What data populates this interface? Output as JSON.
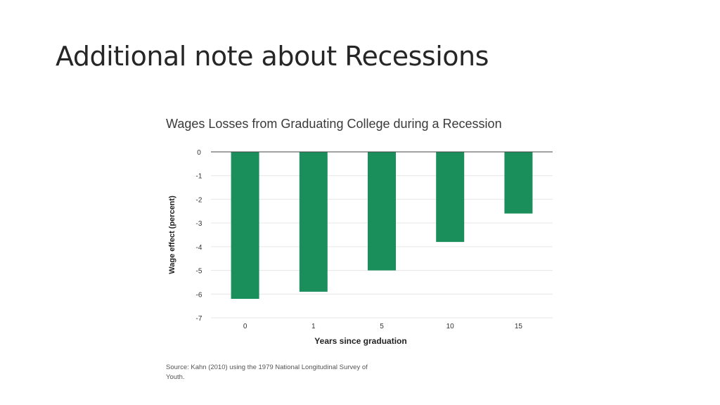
{
  "slide": {
    "title": "Additional note about Recessions"
  },
  "chart_data": {
    "type": "bar",
    "title": "Wages Losses from Graduating College during a Recession",
    "xlabel": "Years since graduation",
    "ylabel": "Wage effect (percent)",
    "categories": [
      "0",
      "1",
      "5",
      "10",
      "15"
    ],
    "values": [
      -6.2,
      -5.9,
      -5.0,
      -3.8,
      -2.6
    ],
    "ylim": [
      -7,
      0
    ],
    "yticks": [
      0,
      -1,
      -2,
      -3,
      -4,
      -5,
      -6,
      -7
    ],
    "grid": true,
    "bar_color": "#1a8f5c",
    "source": "Source: Kahn (2010) using the 1979 National Longitudinal Survey of Youth."
  }
}
